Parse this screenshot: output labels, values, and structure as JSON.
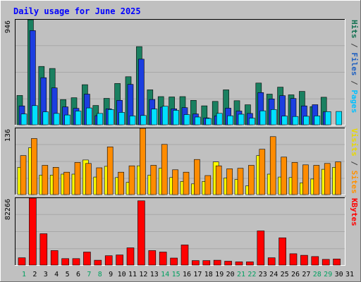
{
  "chart_data": {
    "type": "bar",
    "title": "Daily usage for June 2025",
    "categories": [
      "1",
      "2",
      "3",
      "4",
      "5",
      "6",
      "7",
      "8",
      "9",
      "10",
      "11",
      "12",
      "13",
      "14",
      "15",
      "16",
      "17",
      "18",
      "19",
      "20",
      "21",
      "22",
      "23",
      "24",
      "25",
      "26",
      "27",
      "28",
      "29",
      "30",
      "31"
    ],
    "weekend_days": [
      "1",
      "7",
      "8",
      "14",
      "15",
      "21",
      "22",
      "28",
      "29"
    ],
    "panels": [
      {
        "max_label": "946",
        "axis_labels": [
          {
            "text": "Pages",
            "color": "#00c0ff"
          },
          {
            "text": " / ",
            "color": "#404040"
          },
          {
            "text": "Files",
            "color": "#2060c0"
          },
          {
            "text": " / ",
            "color": "#404040"
          },
          {
            "text": "Hits",
            "color": "#107050"
          }
        ],
        "ylim": [
          0,
          946
        ],
        "series": [
          {
            "name": "Hits",
            "color": "#1a8060",
            "values": [
              264,
              946,
              526,
              507,
              227,
              244,
              361,
              174,
              238,
              372,
              433,
              704,
              315,
              254,
              251,
              254,
              220,
              171,
              211,
              315,
              217,
              180,
              376,
              276,
              339,
              270,
              301,
              164,
              248,
              0,
              0
            ]
          },
          {
            "name": "Files",
            "color": "#1c3ee0",
            "values": [
              170,
              848,
              424,
              332,
              161,
              148,
              276,
              82,
              144,
              220,
              364,
              591,
              228,
              159,
              144,
              154,
              98,
              62,
              80,
              150,
              124,
              102,
              290,
              233,
              262,
              237,
              170,
              181,
              117,
              0,
              0
            ]
          },
          {
            "name": "Pages",
            "color": "#00e0ff",
            "values": [
              98,
              173,
              117,
              102,
              88,
              124,
              152,
              102,
              138,
              112,
              80,
              84,
              142,
              167,
              130,
              92,
              70,
              57,
              103,
              81,
              95,
              60,
              126,
              138,
              79,
              75,
              77,
              80,
              119,
              120,
              0
            ]
          }
        ]
      },
      {
        "max_label": "136",
        "axis_labels": [
          {
            "text": "Sites",
            "color": "#ff9000"
          },
          {
            "text": " / ",
            "color": "#404040"
          },
          {
            "text": "Visits",
            "color": "#e8d800"
          }
        ],
        "ylim": [
          0,
          136
        ],
        "series": [
          {
            "name": "Visits",
            "color": "#ffff00",
            "values": [
              56,
              96,
              40,
              40,
              42,
              42,
              71,
              36,
              58,
              35,
              25,
              59,
              40,
              54,
              35,
              27,
              22,
              27,
              67,
              34,
              31,
              18,
              80,
              42,
              36,
              35,
              24,
              32,
              52,
              56,
              0
            ]
          },
          {
            "name": "Sites",
            "color": "#ff8c00",
            "values": [
              80,
              115,
              60,
              56,
              46,
              66,
              64,
              55,
              98,
              46,
              59,
              136,
              60,
              103,
              51,
              46,
              72,
              39,
              59,
              53,
              54,
              60,
              93,
              119,
              77,
              66,
              61,
              60,
              64,
              67,
              0
            ]
          }
        ]
      },
      {
        "max_label": "82266",
        "axis_labels": [
          {
            "text": "KBytes",
            "color": "#ff0000"
          }
        ],
        "ylim": [
          0,
          82266
        ],
        "series": [
          {
            "name": "KBytes",
            "color": "#ff0000",
            "values": [
              9000,
              82266,
              38500,
              17800,
              8000,
              8000,
              16000,
              6000,
              11500,
              12500,
              21200,
              79000,
              17800,
              16000,
              8700,
              24800,
              5500,
              5500,
              6000,
              4800,
              4000,
              4000,
              42000,
              9000,
              33500,
              13900,
              12000,
              10500,
              7000,
              7500,
              0
            ]
          }
        ]
      }
    ]
  }
}
